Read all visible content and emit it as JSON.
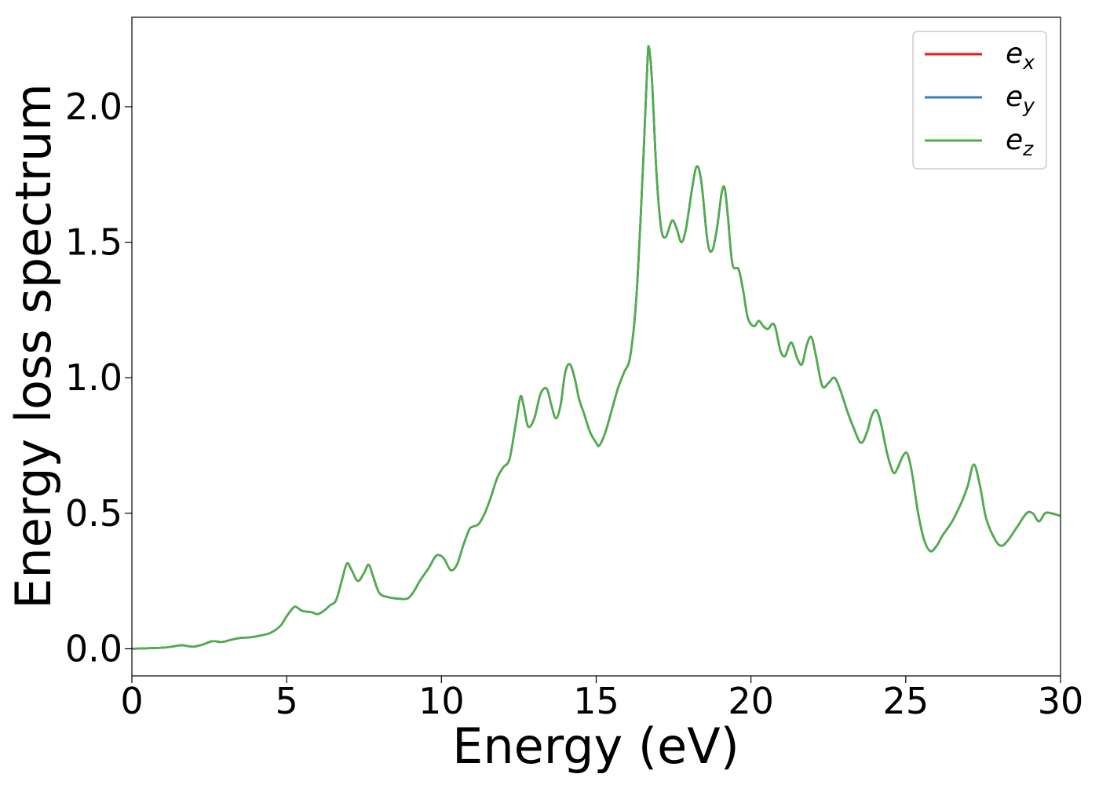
{
  "chart_data": {
    "type": "line",
    "title": "",
    "xlabel": "Energy (eV)",
    "ylabel": "Energy loss spectrum",
    "xlim": [
      0,
      30
    ],
    "ylim": [
      -0.1,
      2.33
    ],
    "x_ticks": [
      0,
      5,
      10,
      15,
      20,
      25,
      30
    ],
    "x_tick_labels": [
      "0",
      "5",
      "10",
      "15",
      "20",
      "25",
      "30"
    ],
    "y_ticks": [
      0.0,
      0.5,
      1.0,
      1.5,
      2.0
    ],
    "y_tick_labels": [
      "0.0",
      "0.5",
      "1.0",
      "1.5",
      "2.0"
    ],
    "grid": false,
    "legend_position": "top-right",
    "series": [
      {
        "name": "e_x",
        "legend_base": "e",
        "legend_sub": "x",
        "color": "#e41a1c",
        "x": [
          0,
          0.5,
          1.0,
          1.3,
          1.6,
          1.8,
          2.0,
          2.3,
          2.6,
          2.9,
          3.2,
          3.5,
          3.8,
          4.2,
          4.5,
          4.8,
          5.0,
          5.2,
          5.3,
          5.5,
          5.8,
          6.0,
          6.2,
          6.4,
          6.6,
          6.8,
          6.95,
          7.1,
          7.3,
          7.5,
          7.65,
          7.8,
          8.0,
          8.3,
          8.6,
          8.9,
          9.1,
          9.3,
          9.6,
          9.8,
          9.95,
          10.1,
          10.3,
          10.5,
          10.7,
          10.9,
          11.0,
          11.2,
          11.4,
          11.6,
          11.8,
          12.0,
          12.2,
          12.4,
          12.55,
          12.65,
          12.8,
          13.0,
          13.2,
          13.4,
          13.55,
          13.7,
          13.85,
          14.0,
          14.15,
          14.3,
          14.45,
          14.6,
          14.8,
          15.0,
          15.1,
          15.3,
          15.5,
          15.7,
          15.9,
          16.1,
          16.3,
          16.5,
          16.65,
          16.7,
          16.8,
          16.95,
          17.1,
          17.25,
          17.45,
          17.6,
          17.75,
          17.9,
          18.1,
          18.25,
          18.4,
          18.6,
          18.75,
          18.9,
          19.05,
          19.15,
          19.25,
          19.4,
          19.6,
          19.75,
          19.9,
          20.1,
          20.25,
          20.4,
          20.55,
          20.7,
          20.8,
          20.95,
          21.1,
          21.3,
          21.5,
          21.65,
          21.8,
          21.95,
          22.1,
          22.3,
          22.5,
          22.7,
          22.9,
          23.1,
          23.3,
          23.55,
          23.75,
          23.9,
          24.05,
          24.2,
          24.4,
          24.6,
          24.75,
          24.9,
          25.05,
          25.2,
          25.4,
          25.6,
          25.8,
          26.0,
          26.2,
          26.5,
          26.8,
          27.0,
          27.2,
          27.4,
          27.6,
          27.9,
          28.1,
          28.3,
          28.6,
          28.9,
          29.1,
          29.3,
          29.5,
          29.7,
          30.0
        ],
        "y": [
          0.0,
          0.002,
          0.004,
          0.008,
          0.013,
          0.01,
          0.008,
          0.016,
          0.028,
          0.025,
          0.033,
          0.04,
          0.042,
          0.05,
          0.06,
          0.085,
          0.12,
          0.15,
          0.155,
          0.14,
          0.135,
          0.128,
          0.14,
          0.16,
          0.18,
          0.26,
          0.315,
          0.29,
          0.25,
          0.28,
          0.31,
          0.265,
          0.205,
          0.19,
          0.185,
          0.185,
          0.21,
          0.25,
          0.3,
          0.34,
          0.345,
          0.33,
          0.29,
          0.31,
          0.38,
          0.44,
          0.45,
          0.46,
          0.5,
          0.56,
          0.63,
          0.67,
          0.7,
          0.83,
          0.93,
          0.9,
          0.82,
          0.85,
          0.94,
          0.96,
          0.9,
          0.85,
          0.9,
          1.02,
          1.05,
          1.0,
          0.92,
          0.87,
          0.8,
          0.76,
          0.75,
          0.8,
          0.88,
          0.96,
          1.02,
          1.08,
          1.3,
          1.75,
          2.15,
          2.22,
          2.1,
          1.75,
          1.55,
          1.52,
          1.58,
          1.55,
          1.5,
          1.55,
          1.7,
          1.78,
          1.72,
          1.5,
          1.47,
          1.55,
          1.68,
          1.7,
          1.6,
          1.42,
          1.4,
          1.32,
          1.22,
          1.19,
          1.21,
          1.19,
          1.18,
          1.2,
          1.18,
          1.1,
          1.08,
          1.13,
          1.07,
          1.05,
          1.12,
          1.15,
          1.08,
          0.97,
          0.98,
          1.0,
          0.95,
          0.88,
          0.82,
          0.76,
          0.8,
          0.86,
          0.88,
          0.83,
          0.72,
          0.65,
          0.67,
          0.71,
          0.72,
          0.65,
          0.5,
          0.4,
          0.36,
          0.38,
          0.42,
          0.47,
          0.54,
          0.6,
          0.68,
          0.6,
          0.48,
          0.4,
          0.38,
          0.4,
          0.45,
          0.5,
          0.5,
          0.47,
          0.5,
          0.5,
          0.49
        ]
      },
      {
        "name": "e_y",
        "legend_base": "e",
        "legend_sub": "y",
        "color": "#377eb8",
        "same_as": 0
      },
      {
        "name": "e_z",
        "legend_base": "e",
        "legend_sub": "z",
        "color": "#4daf4a",
        "same_as": 0
      }
    ]
  }
}
